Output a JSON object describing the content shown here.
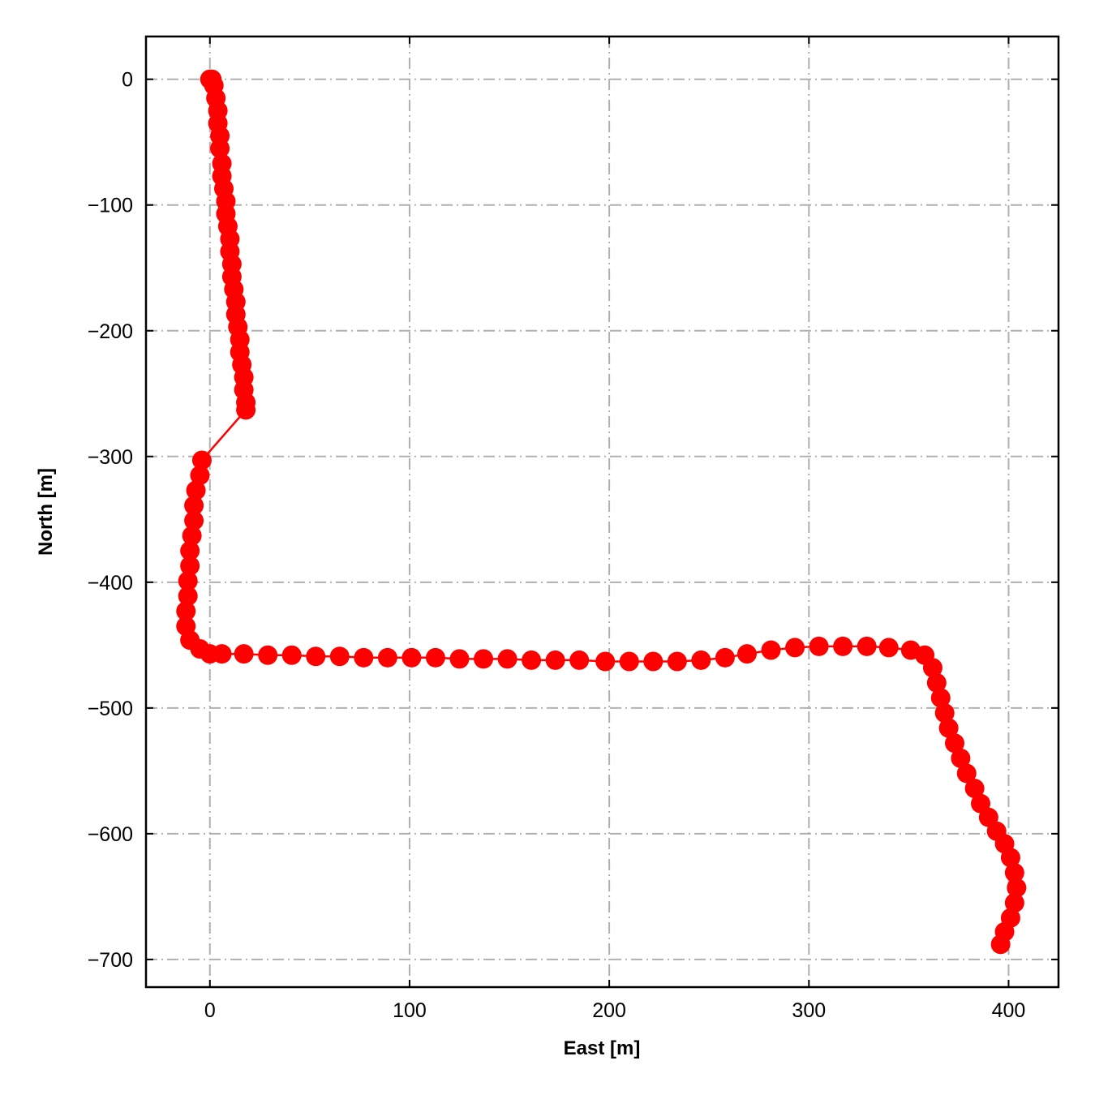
{
  "chart_data": {
    "type": "scatter",
    "title": "",
    "xlabel": "East [m]",
    "ylabel": "North [m]",
    "xlim": [
      -32,
      425
    ],
    "ylim": [
      -722,
      34
    ],
    "grid": true,
    "x_ticks": [
      0,
      100,
      200,
      300,
      400
    ],
    "y_ticks": [
      0,
      -100,
      -200,
      -300,
      -400,
      -500,
      -600,
      -700
    ],
    "x_tick_labels": [
      "0",
      "100",
      "200",
      "300",
      "400"
    ],
    "y_tick_labels": [
      "0",
      "−100",
      "−200",
      "−300",
      "−400",
      "−500",
      "−600",
      "−700"
    ],
    "series": [
      {
        "color": "#ff0000",
        "marker": "circle",
        "line": true,
        "points": [
          [
            0,
            0
          ],
          [
            1,
            0
          ],
          [
            2,
            -5
          ],
          [
            3,
            -15
          ],
          [
            4,
            -25
          ],
          [
            4,
            -35
          ],
          [
            5,
            -45
          ],
          [
            5,
            -55
          ],
          [
            6,
            -67
          ],
          [
            6,
            -77
          ],
          [
            7,
            -87
          ],
          [
            8,
            -97
          ],
          [
            8,
            -107
          ],
          [
            9,
            -117
          ],
          [
            10,
            -127
          ],
          [
            10,
            -137
          ],
          [
            11,
            -147
          ],
          [
            11,
            -157
          ],
          [
            12,
            -167
          ],
          [
            13,
            -177
          ],
          [
            13,
            -187
          ],
          [
            14,
            -197
          ],
          [
            15,
            -207
          ],
          [
            15,
            -217
          ],
          [
            16,
            -227
          ],
          [
            17,
            -237
          ],
          [
            17,
            -247
          ],
          [
            18,
            -257
          ],
          [
            18,
            -263
          ],
          [
            -4,
            -303
          ],
          [
            -5,
            -315
          ],
          [
            -7,
            -327
          ],
          [
            -8,
            -339
          ],
          [
            -8,
            -351
          ],
          [
            -9,
            -363
          ],
          [
            -10,
            -375
          ],
          [
            -10,
            -387
          ],
          [
            -11,
            -399
          ],
          [
            -11,
            -411
          ],
          [
            -12,
            -423
          ],
          [
            -12,
            -435
          ],
          [
            -10,
            -446
          ],
          [
            -5,
            -453
          ],
          [
            0,
            -457
          ],
          [
            6,
            -457
          ],
          [
            17,
            -457
          ],
          [
            29,
            -458
          ],
          [
            41,
            -458
          ],
          [
            53,
            -459
          ],
          [
            65,
            -459
          ],
          [
            77,
            -460
          ],
          [
            89,
            -460
          ],
          [
            101,
            -460
          ],
          [
            113,
            -460
          ],
          [
            125,
            -461
          ],
          [
            137,
            -461
          ],
          [
            149,
            -461
          ],
          [
            161,
            -462
          ],
          [
            173,
            -462
          ],
          [
            185,
            -462
          ],
          [
            198,
            -463
          ],
          [
            210,
            -463
          ],
          [
            222,
            -463
          ],
          [
            234,
            -463
          ],
          [
            246,
            -462
          ],
          [
            258,
            -460
          ],
          [
            269,
            -457
          ],
          [
            281,
            -454
          ],
          [
            293,
            -452
          ],
          [
            305,
            -451
          ],
          [
            317,
            -451
          ],
          [
            329,
            -451
          ],
          [
            340,
            -452
          ],
          [
            351,
            -454
          ],
          [
            358,
            -458
          ],
          [
            362,
            -468
          ],
          [
            364,
            -480
          ],
          [
            366,
            -492
          ],
          [
            368,
            -504
          ],
          [
            370,
            -516
          ],
          [
            373,
            -528
          ],
          [
            376,
            -540
          ],
          [
            379,
            -552
          ],
          [
            383,
            -564
          ],
          [
            386,
            -576
          ],
          [
            390,
            -587
          ],
          [
            394,
            -598
          ],
          [
            398,
            -608
          ],
          [
            401,
            -619
          ],
          [
            403,
            -631
          ],
          [
            404,
            -643
          ],
          [
            403,
            -655
          ],
          [
            401,
            -667
          ],
          [
            398,
            -678
          ],
          [
            396,
            -688
          ]
        ]
      }
    ]
  }
}
